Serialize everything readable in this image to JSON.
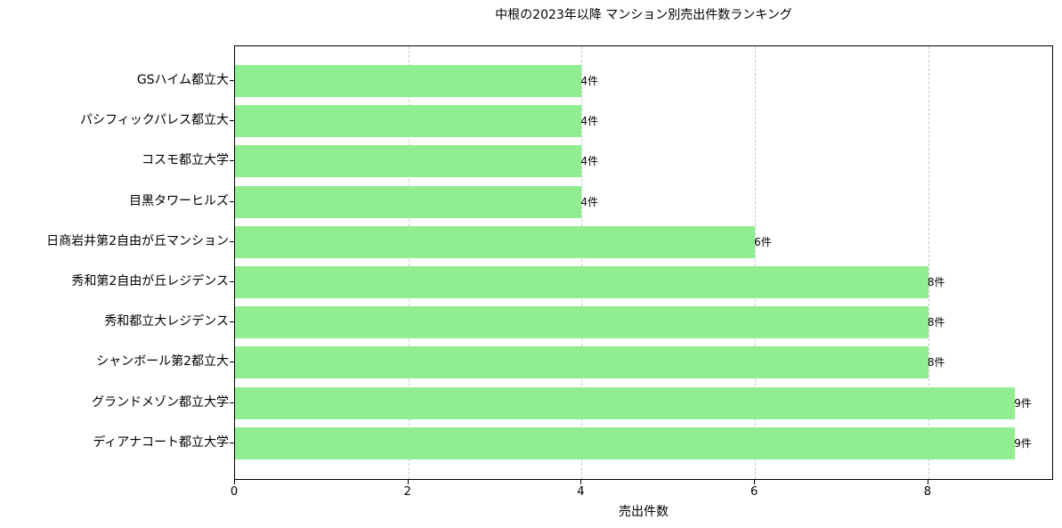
{
  "chart_data": {
    "type": "bar",
    "orientation": "horizontal",
    "title": "中根の2023年以降 マンション別売出件数ランキング",
    "xlabel": "売出件数",
    "ylabel": "",
    "xlim": [
      0,
      9.45
    ],
    "xticks": [
      0,
      2,
      4,
      6,
      8
    ],
    "grid": {
      "x": true,
      "y": false,
      "style": "dashed"
    },
    "bar_color": "#90ee90",
    "value_suffix": "件",
    "categories": [
      "GSハイム都立大",
      "パシフィックパレス都立大",
      "コスモ都立大学",
      "目黒タワーヒルズ",
      "日商岩井第2自由が丘マンション",
      "秀和第2自由が丘レジデンス",
      "秀和都立大レジデンス",
      "シャンボール第2都立大",
      "グランドメゾン都立大学",
      "ディアナコート都立大学"
    ],
    "values": [
      4,
      4,
      4,
      4,
      6,
      8,
      8,
      8,
      9,
      9
    ],
    "labels": [
      "4件",
      "4件",
      "4件",
      "4件",
      "6件",
      "8件",
      "8件",
      "8件",
      "9件",
      "9件"
    ]
  }
}
